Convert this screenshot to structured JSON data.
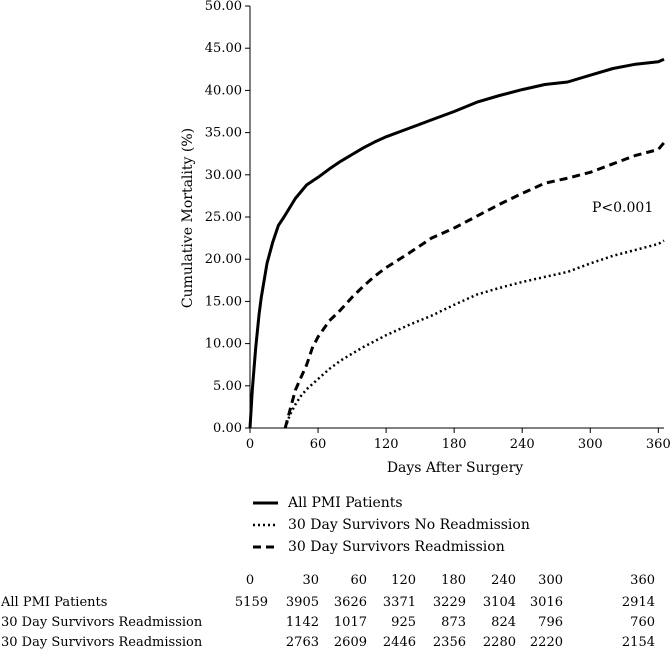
{
  "chart_data": {
    "type": "line",
    "title": "",
    "xlabel": "Days After Surgery",
    "ylabel": "Cumulative Mortality (%)",
    "xlim": [
      0,
      365
    ],
    "ylim": [
      0,
      50
    ],
    "x_ticks": [
      0,
      60,
      120,
      180,
      240,
      300,
      360
    ],
    "y_ticks": [
      "0.00",
      "5.00",
      "10.00",
      "15.00",
      "20.00",
      "25.00",
      "30.00",
      "35.00",
      "40.00",
      "45.00",
      "50.00"
    ],
    "grid": false,
    "legend_position": "below-plot",
    "annotation": "P<0.001",
    "series": [
      {
        "name": "All PMI Patients",
        "style": "solid",
        "x": [
          0,
          2,
          5,
          8,
          10,
          15,
          20,
          25,
          30,
          40,
          50,
          60,
          70,
          80,
          90,
          100,
          110,
          120,
          140,
          160,
          180,
          200,
          220,
          240,
          260,
          280,
          300,
          320,
          340,
          360,
          365
        ],
        "y": [
          0,
          4.5,
          9.5,
          13.5,
          15.5,
          19.5,
          22.0,
          24.0,
          25.0,
          27.2,
          28.8,
          29.7,
          30.7,
          31.6,
          32.4,
          33.2,
          33.9,
          34.5,
          35.5,
          36.5,
          37.5,
          38.6,
          39.4,
          40.1,
          40.7,
          41.0,
          41.8,
          42.6,
          43.1,
          43.4,
          43.7
        ]
      },
      {
        "name": "30 Day Survivors No Readmission",
        "style": "dotted",
        "x": [
          31,
          35,
          40,
          45,
          50,
          60,
          70,
          80,
          90,
          100,
          110,
          120,
          140,
          160,
          180,
          200,
          220,
          240,
          260,
          280,
          300,
          320,
          340,
          360,
          365
        ],
        "y": [
          0,
          1.5,
          2.8,
          3.8,
          4.6,
          5.8,
          7.0,
          8.0,
          8.8,
          9.6,
          10.3,
          11.0,
          12.2,
          13.3,
          14.6,
          15.8,
          16.6,
          17.3,
          17.9,
          18.5,
          19.5,
          20.4,
          21.1,
          21.8,
          22.2
        ]
      },
      {
        "name": "30 Day Survivors Readmission",
        "style": "dashed",
        "x": [
          31,
          35,
          40,
          45,
          50,
          55,
          60,
          70,
          80,
          90,
          100,
          110,
          120,
          140,
          160,
          180,
          200,
          220,
          240,
          260,
          280,
          300,
          320,
          340,
          360,
          365
        ],
        "y": [
          0,
          2.0,
          4.5,
          6.0,
          7.5,
          9.5,
          10.8,
          12.7,
          14.0,
          15.5,
          16.8,
          18.0,
          19.0,
          20.7,
          22.5,
          23.7,
          25.1,
          26.5,
          27.8,
          29.0,
          29.6,
          30.3,
          31.3,
          32.3,
          33.0,
          33.8
        ]
      }
    ]
  },
  "risk_table": {
    "header": [
      "0",
      "30",
      "60",
      "120",
      "180",
      "240",
      "300",
      "360"
    ],
    "rows": [
      {
        "label": "All PMI Patients",
        "values": [
          "5159",
          "3905",
          "3626",
          "3371",
          "3229",
          "3104",
          "3016",
          "2914"
        ]
      },
      {
        "label": "30 Day Survivors Readmission",
        "values": [
          "",
          "1142",
          "1017",
          "925",
          "873",
          "824",
          "796",
          "760"
        ]
      },
      {
        "label": "30 Day Survivors Readmission",
        "values": [
          "",
          "2763",
          "2609",
          "2446",
          "2356",
          "2280",
          "2220",
          "2154"
        ]
      }
    ]
  }
}
